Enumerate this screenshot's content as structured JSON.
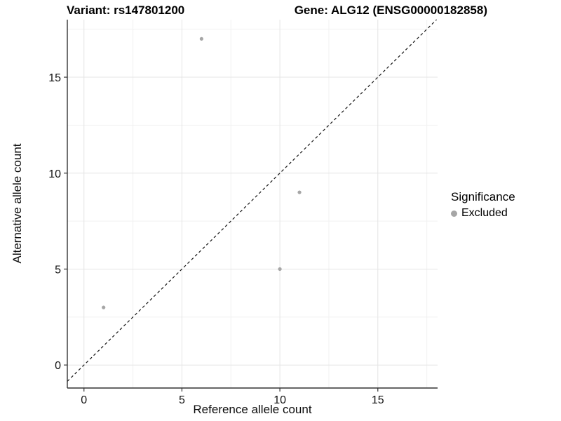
{
  "chart_data": {
    "type": "scatter",
    "title_left": "Variant: rs147801200",
    "title_right": "Gene: ALG12 (ENSG00000182858)",
    "xlabel": "Reference allele count",
    "ylabel": "Alternative allele count",
    "xlim": [
      -0.85,
      18.05
    ],
    "ylim": [
      -1.2,
      18.0
    ],
    "xticks": [
      0,
      5,
      10,
      15
    ],
    "yticks": [
      0,
      5,
      10,
      15
    ],
    "minor_gridlines": [
      2.5,
      7.5,
      12.5,
      17.5
    ],
    "grid": "major+minor, light gray on white",
    "legend": {
      "position": "right",
      "title": "Significance"
    },
    "series": [
      {
        "name": "Excluded",
        "color": "#a6a6a6",
        "marker": "circle",
        "points": [
          [
            1,
            3
          ],
          [
            6,
            17
          ],
          [
            10,
            5
          ],
          [
            11,
            9
          ]
        ]
      }
    ],
    "reference_line": {
      "type": "identity y=x",
      "style": "dashed",
      "color": "#141414"
    }
  }
}
